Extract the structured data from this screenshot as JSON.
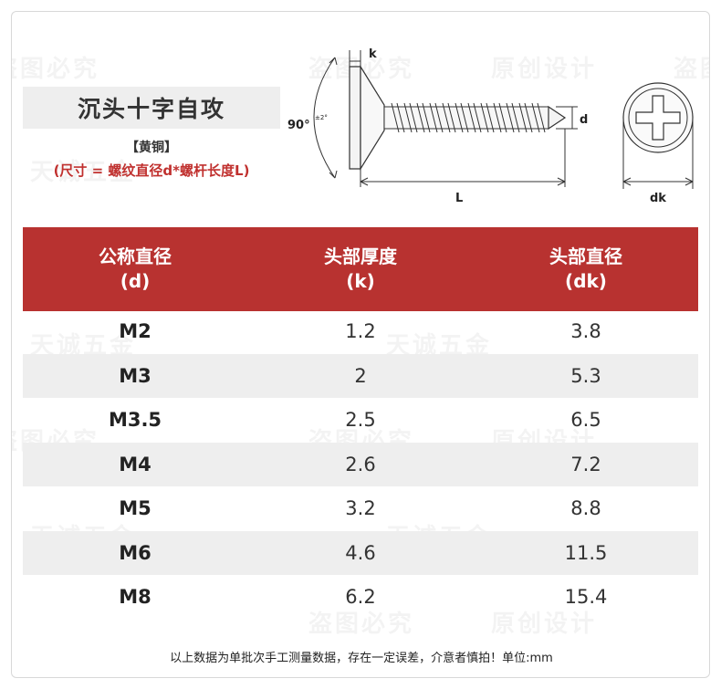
{
  "header": {
    "title": "沉头十字自攻",
    "material": "【黄铜】",
    "size_note": "(尺寸 = 螺纹直径d*螺杆长度L)"
  },
  "diagram": {
    "angle_label": "90°",
    "angle_tol": "±2°",
    "k_label": "k",
    "d_label": "d",
    "L_label": "L",
    "dk_label": "dk"
  },
  "table": {
    "headers": [
      {
        "line1": "公称直径",
        "line2": "(d)"
      },
      {
        "line1": "头部厚度",
        "line2": "(k)"
      },
      {
        "line1": "头部直径",
        "line2": "(dk)"
      }
    ],
    "rows": [
      {
        "d": "M2",
        "k": "1.2",
        "dk": "3.8"
      },
      {
        "d": "M3",
        "k": "2",
        "dk": "5.3"
      },
      {
        "d": "M3.5",
        "k": "2.5",
        "dk": "6.5"
      },
      {
        "d": "M4",
        "k": "2.6",
        "dk": "7.2"
      },
      {
        "d": "M5",
        "k": "3.2",
        "dk": "8.8"
      },
      {
        "d": "M6",
        "k": "4.6",
        "dk": "11.5"
      },
      {
        "d": "M8",
        "k": "6.2",
        "dk": "15.4"
      }
    ]
  },
  "footer": "以上数据为单批次手工测量数据，存在一定误差，介意者慎拍！单位:mm",
  "watermarks": [
    "盗图必究",
    "原创设计",
    "天诚五金"
  ],
  "colors": {
    "accent": "#b83230",
    "row_alt": "#eeeeee"
  }
}
